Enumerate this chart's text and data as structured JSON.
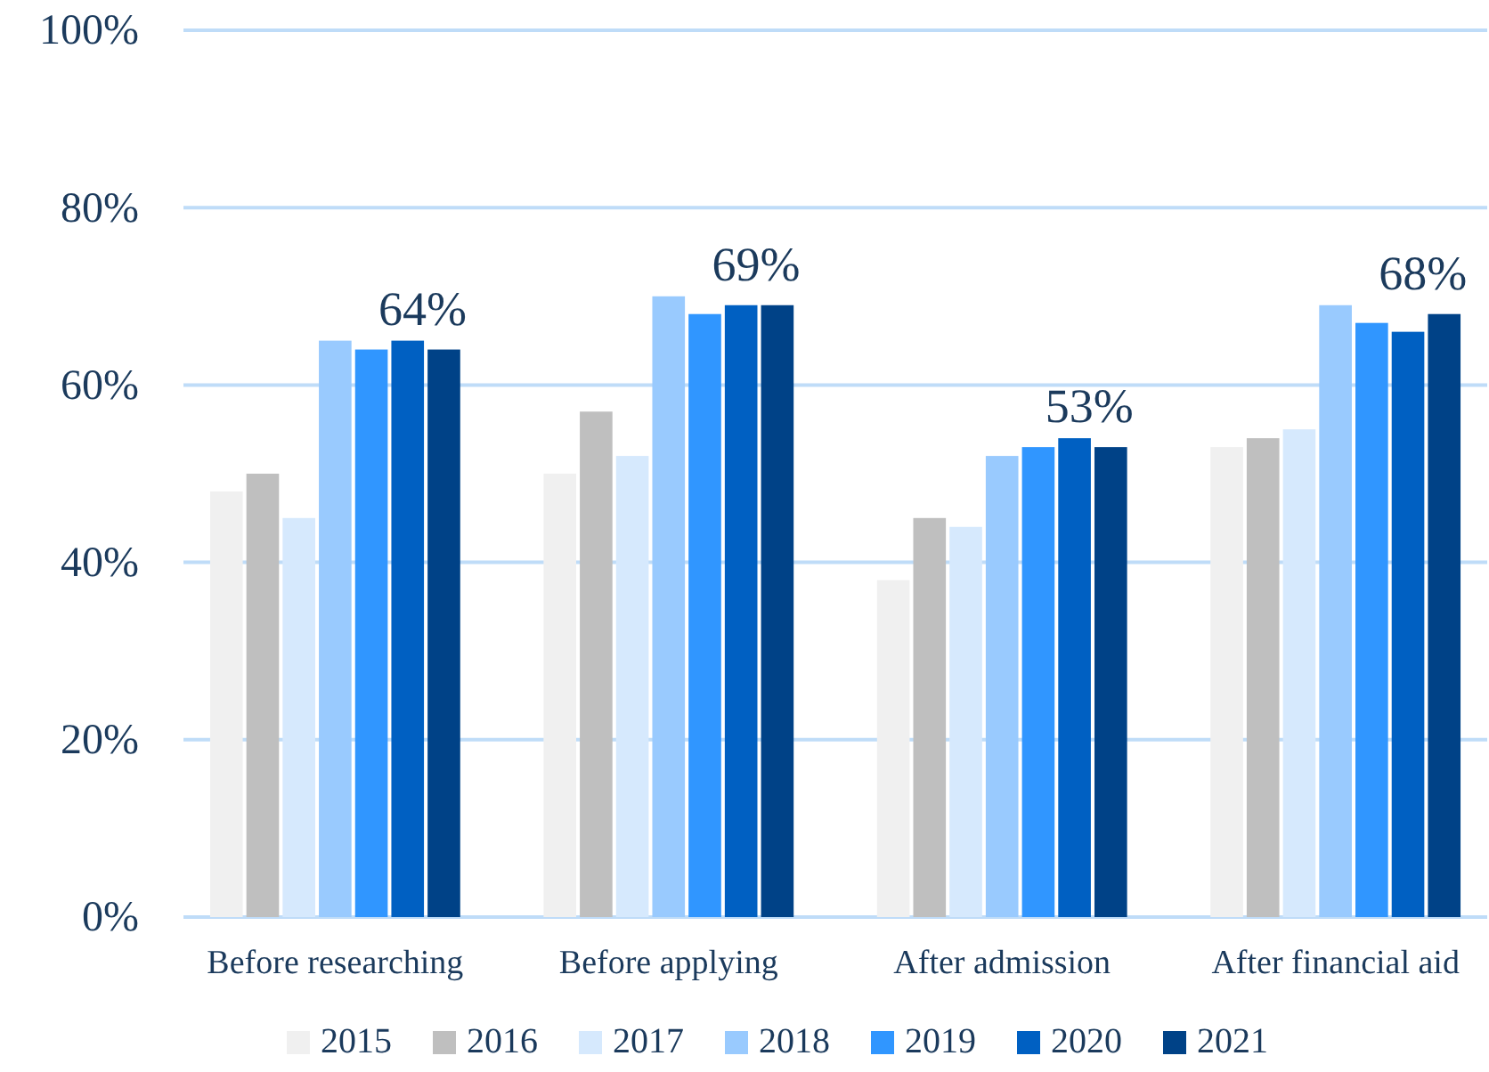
{
  "chart_data": {
    "type": "bar",
    "categories": [
      "Before researching",
      "Before applying",
      "After admission",
      "After financial aid"
    ],
    "series": [
      {
        "name": "2015",
        "color": "#f0f0f0",
        "values": [
          48,
          50,
          38,
          53
        ]
      },
      {
        "name": "2016",
        "color": "#bfbfbf",
        "values": [
          50,
          57,
          45,
          54
        ]
      },
      {
        "name": "2017",
        "color": "#d6e9fd",
        "values": [
          45,
          52,
          44,
          55
        ]
      },
      {
        "name": "2018",
        "color": "#99cafe",
        "values": [
          65,
          70,
          52,
          69
        ]
      },
      {
        "name": "2019",
        "color": "#3096ff",
        "values": [
          64,
          68,
          53,
          67
        ]
      },
      {
        "name": "2020",
        "color": "#0060c2",
        "values": [
          65,
          69,
          54,
          66
        ]
      },
      {
        "name": "2021",
        "color": "#004287",
        "values": [
          64,
          69,
          53,
          68
        ],
        "value_labels": [
          "64%",
          "69%",
          "53%",
          "68%"
        ]
      }
    ],
    "ylim": [
      0,
      100
    ],
    "yticks": [
      {
        "value": 0,
        "label": "0%"
      },
      {
        "value": 20,
        "label": "20%"
      },
      {
        "value": 40,
        "label": "40%"
      },
      {
        "value": 60,
        "label": "60%"
      },
      {
        "value": 80,
        "label": "80%"
      },
      {
        "value": 100,
        "label": "100%"
      }
    ],
    "grid": "y",
    "legend": "bottom"
  }
}
